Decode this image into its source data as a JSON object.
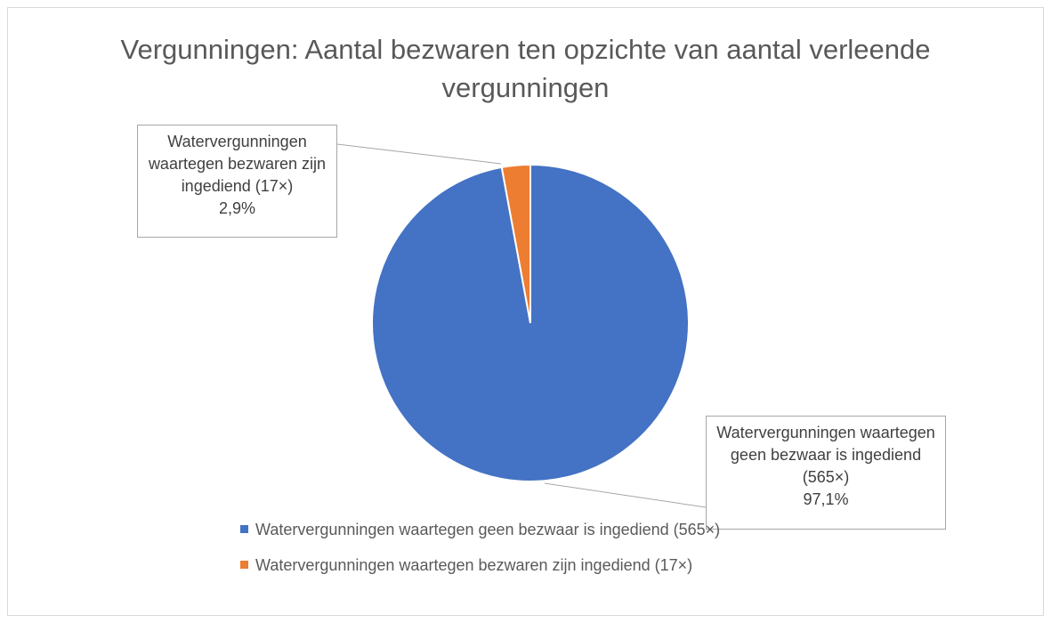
{
  "chart_data": {
    "type": "pie",
    "title": "Vergunningen: Aantal bezwaren ten opzichte van aantal verleende vergunningen",
    "categories": [
      "Watervergunningen waartegen geen bezwaar is ingediend (565×)",
      "Watervergunningen waartegen bezwaren zijn ingediend (17×)"
    ],
    "values": [
      97.1,
      2.9
    ],
    "value_labels": [
      "97,1%",
      "2,9%"
    ],
    "colors": [
      "#4472c4",
      "#ed7d31"
    ],
    "legend": "bottom"
  }
}
